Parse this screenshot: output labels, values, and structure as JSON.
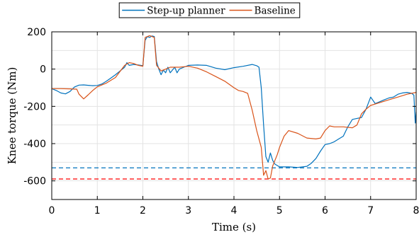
{
  "chart_data": {
    "type": "line",
    "title": "",
    "xlabel": "Time (s)",
    "ylabel": "Knee torque (Nm)",
    "xlim": [
      0,
      8
    ],
    "ylim": [
      -700,
      200
    ],
    "xticks": [
      0,
      1,
      2,
      3,
      4,
      5,
      6,
      7,
      8
    ],
    "yticks": [
      200,
      0,
      -200,
      -400,
      -600
    ],
    "grid": true,
    "legend_position": "top-center",
    "series": [
      {
        "name": "Step-up planner",
        "color": "#0072BD",
        "style": "solid",
        "points": [
          [
            0,
            -105
          ],
          [
            0.1,
            -115
          ],
          [
            0.2,
            -128
          ],
          [
            0.3,
            -133
          ],
          [
            0.4,
            -120
          ],
          [
            0.5,
            -96
          ],
          [
            0.6,
            -86
          ],
          [
            0.7,
            -85
          ],
          [
            0.8,
            -87
          ],
          [
            0.9,
            -89
          ],
          [
            1.0,
            -88
          ],
          [
            1.1,
            -80
          ],
          [
            1.2,
            -65
          ],
          [
            1.3,
            -48
          ],
          [
            1.4,
            -30
          ],
          [
            1.5,
            -10
          ],
          [
            1.6,
            10
          ],
          [
            1.65,
            35
          ],
          [
            1.7,
            20
          ],
          [
            1.8,
            25
          ],
          [
            1.9,
            22
          ],
          [
            2.0,
            18
          ],
          [
            2.05,
            155
          ],
          [
            2.1,
            175
          ],
          [
            2.15,
            170
          ],
          [
            2.2,
            178
          ],
          [
            2.25,
            175
          ],
          [
            2.3,
            40
          ],
          [
            2.35,
            0
          ],
          [
            2.4,
            -30
          ],
          [
            2.45,
            -5
          ],
          [
            2.5,
            -20
          ],
          [
            2.55,
            10
          ],
          [
            2.6,
            -20
          ],
          [
            2.7,
            10
          ],
          [
            2.75,
            -20
          ],
          [
            2.8,
            0
          ],
          [
            2.9,
            10
          ],
          [
            3.0,
            20
          ],
          [
            3.2,
            22
          ],
          [
            3.4,
            20
          ],
          [
            3.6,
            5
          ],
          [
            3.8,
            -3
          ],
          [
            4.0,
            8
          ],
          [
            4.2,
            15
          ],
          [
            4.4,
            25
          ],
          [
            4.5,
            18
          ],
          [
            4.55,
            10
          ],
          [
            4.6,
            -100
          ],
          [
            4.65,
            -300
          ],
          [
            4.7,
            -470
          ],
          [
            4.75,
            -500
          ],
          [
            4.8,
            -450
          ],
          [
            4.85,
            -490
          ],
          [
            4.9,
            -510
          ],
          [
            5.0,
            -525
          ],
          [
            5.2,
            -525
          ],
          [
            5.4,
            -528
          ],
          [
            5.6,
            -522
          ],
          [
            5.7,
            -505
          ],
          [
            5.8,
            -480
          ],
          [
            5.9,
            -440
          ],
          [
            6.0,
            -405
          ],
          [
            6.1,
            -400
          ],
          [
            6.2,
            -390
          ],
          [
            6.3,
            -375
          ],
          [
            6.4,
            -360
          ],
          [
            6.5,
            -310
          ],
          [
            6.6,
            -270
          ],
          [
            6.7,
            -265
          ],
          [
            6.8,
            -260
          ],
          [
            6.9,
            -215
          ],
          [
            7.0,
            -150
          ],
          [
            7.1,
            -185
          ],
          [
            7.2,
            -175
          ],
          [
            7.3,
            -165
          ],
          [
            7.4,
            -155
          ],
          [
            7.5,
            -150
          ],
          [
            7.6,
            -135
          ],
          [
            7.7,
            -128
          ],
          [
            7.8,
            -125
          ],
          [
            7.9,
            -130
          ],
          [
            7.95,
            -140
          ],
          [
            7.98,
            -290
          ],
          [
            8.0,
            -230
          ]
        ]
      },
      {
        "name": "Baseline",
        "color": "#D95319",
        "style": "solid",
        "points": [
          [
            0,
            -105
          ],
          [
            0.2,
            -105
          ],
          [
            0.4,
            -106
          ],
          [
            0.55,
            -108
          ],
          [
            0.6,
            -135
          ],
          [
            0.7,
            -160
          ],
          [
            0.8,
            -138
          ],
          [
            0.9,
            -115
          ],
          [
            1.0,
            -95
          ],
          [
            1.2,
            -75
          ],
          [
            1.4,
            -45
          ],
          [
            1.6,
            20
          ],
          [
            1.7,
            35
          ],
          [
            1.8,
            30
          ],
          [
            1.9,
            20
          ],
          [
            2.0,
            15
          ],
          [
            2.05,
            170
          ],
          [
            2.15,
            180
          ],
          [
            2.25,
            170
          ],
          [
            2.3,
            20
          ],
          [
            2.4,
            -10
          ],
          [
            2.5,
            0
          ],
          [
            2.6,
            10
          ],
          [
            2.8,
            10
          ],
          [
            3.0,
            15
          ],
          [
            3.2,
            5
          ],
          [
            3.4,
            -15
          ],
          [
            3.6,
            -40
          ],
          [
            3.8,
            -65
          ],
          [
            4.0,
            -100
          ],
          [
            4.1,
            -115
          ],
          [
            4.2,
            -120
          ],
          [
            4.3,
            -130
          ],
          [
            4.4,
            -220
          ],
          [
            4.5,
            -330
          ],
          [
            4.6,
            -420
          ],
          [
            4.65,
            -570
          ],
          [
            4.7,
            -545
          ],
          [
            4.75,
            -590
          ],
          [
            4.8,
            -585
          ],
          [
            4.85,
            -520
          ],
          [
            4.9,
            -490
          ],
          [
            4.95,
            -460
          ],
          [
            5.0,
            -420
          ],
          [
            5.1,
            -360
          ],
          [
            5.2,
            -330
          ],
          [
            5.4,
            -345
          ],
          [
            5.6,
            -370
          ],
          [
            5.8,
            -375
          ],
          [
            5.9,
            -370
          ],
          [
            6.0,
            -330
          ],
          [
            6.1,
            -305
          ],
          [
            6.2,
            -310
          ],
          [
            6.4,
            -310
          ],
          [
            6.6,
            -315
          ],
          [
            6.7,
            -300
          ],
          [
            6.8,
            -240
          ],
          [
            6.9,
            -215
          ],
          [
            7.0,
            -195
          ],
          [
            7.2,
            -180
          ],
          [
            7.4,
            -165
          ],
          [
            7.6,
            -150
          ],
          [
            7.8,
            -135
          ],
          [
            8.0,
            -125
          ]
        ]
      }
    ],
    "reference_lines": [
      {
        "y": -530,
        "color": "#0072BD",
        "style": "dashed"
      },
      {
        "y": -590,
        "color": "#FF0000",
        "style": "dashed"
      }
    ]
  }
}
